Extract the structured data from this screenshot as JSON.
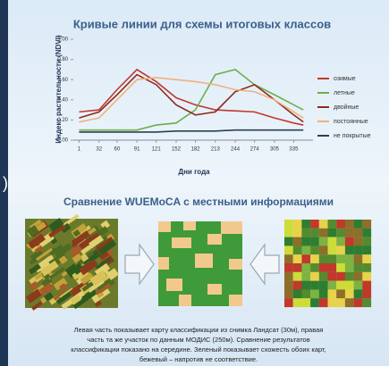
{
  "chart_data": {
    "type": "line",
    "title": "Кривые линии для схемы итоговых  классов",
    "y_label": "Индекс растительности (NDVI)",
    "x_label": "Дни года",
    "x": [
      1,
      32,
      60,
      91,
      121,
      152,
      182,
      213,
      244,
      274,
      305,
      335,
      350
    ],
    "series": [
      {
        "name": "озимые",
        "color": "#c0392b",
        "values": [
          0.28,
          0.3,
          0.5,
          0.7,
          0.58,
          0.42,
          0.35,
          0.3,
          0.29,
          0.28,
          0.22,
          0.17,
          0.15
        ]
      },
      {
        "name": "летные",
        "color": "#6ab04c",
        "values": [
          0.1,
          0.1,
          0.1,
          0.1,
          0.15,
          0.17,
          0.3,
          0.65,
          0.7,
          0.55,
          0.45,
          0.35,
          0.3
        ]
      },
      {
        "name": "двойные",
        "color": "#8e2a1e",
        "values": [
          0.22,
          0.28,
          0.45,
          0.65,
          0.55,
          0.35,
          0.25,
          0.28,
          0.48,
          0.55,
          0.4,
          0.25,
          0.18
        ]
      },
      {
        "name": "постоянные",
        "color": "#f0b27a",
        "values": [
          0.18,
          0.22,
          0.4,
          0.6,
          0.62,
          0.6,
          0.58,
          0.55,
          0.5,
          0.48,
          0.4,
          0.28,
          0.22
        ]
      },
      {
        "name": "не покрытые",
        "color": "#2c3e50",
        "values": [
          0.08,
          0.08,
          0.08,
          0.08,
          0.08,
          0.09,
          0.09,
          0.09,
          0.1,
          0.1,
          0.1,
          0.1,
          0.1
        ]
      }
    ],
    "xlim": [
      -8,
      365
    ],
    "xticks": [
      1,
      32,
      60,
      91,
      121,
      152,
      182,
      213,
      244,
      274,
      305,
      335
    ],
    "ylim": [
      0,
      1
    ],
    "yticks": [
      {
        "value": 0,
        "label": "0.00"
      },
      {
        "value": 0.2,
        "label": "0.20"
      },
      {
        "value": 0.4,
        "label": "0.40"
      },
      {
        "value": 0.6,
        "label": "0.60"
      },
      {
        "value": 0.8,
        "label": "0.80"
      },
      {
        "value": 1,
        "label": "1.00"
      }
    ],
    "grid": false,
    "legend": "right"
  },
  "edge_mark": ")",
  "comparison": {
    "title": "Сравнение WUEMoCA с местными информациями",
    "caption": [
      "Левая часть показывает карту классификации из снимка Ландсат (30м), правая",
      "часть та же участок по данным МОДИС (250м). Сравнение результатов",
      "классификации показано на середине. Зеленый показывает схожесть обоих карт,",
      "бежевый – напротив не соответствие."
    ]
  }
}
